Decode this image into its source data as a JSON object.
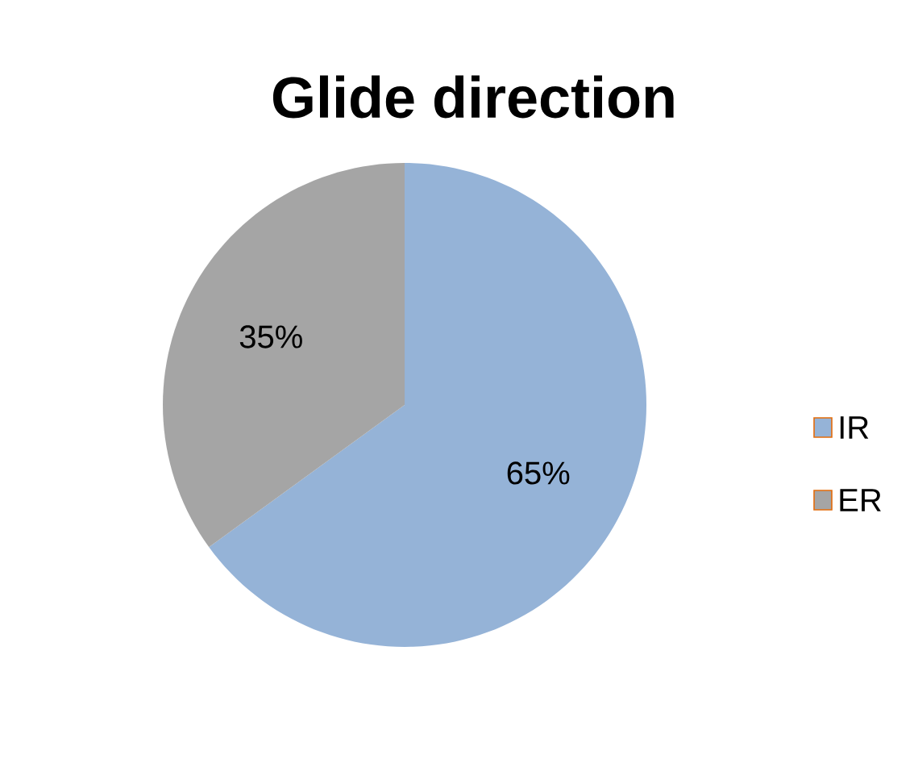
{
  "chart_data": {
    "type": "pie",
    "title": "Glide direction",
    "categories": [
      "IR",
      "ER"
    ],
    "values": [
      65,
      35
    ],
    "colors": [
      "#95b3d7",
      "#a5a5a5"
    ],
    "value_labels": [
      "65%",
      "35%"
    ],
    "legend": "right"
  }
}
